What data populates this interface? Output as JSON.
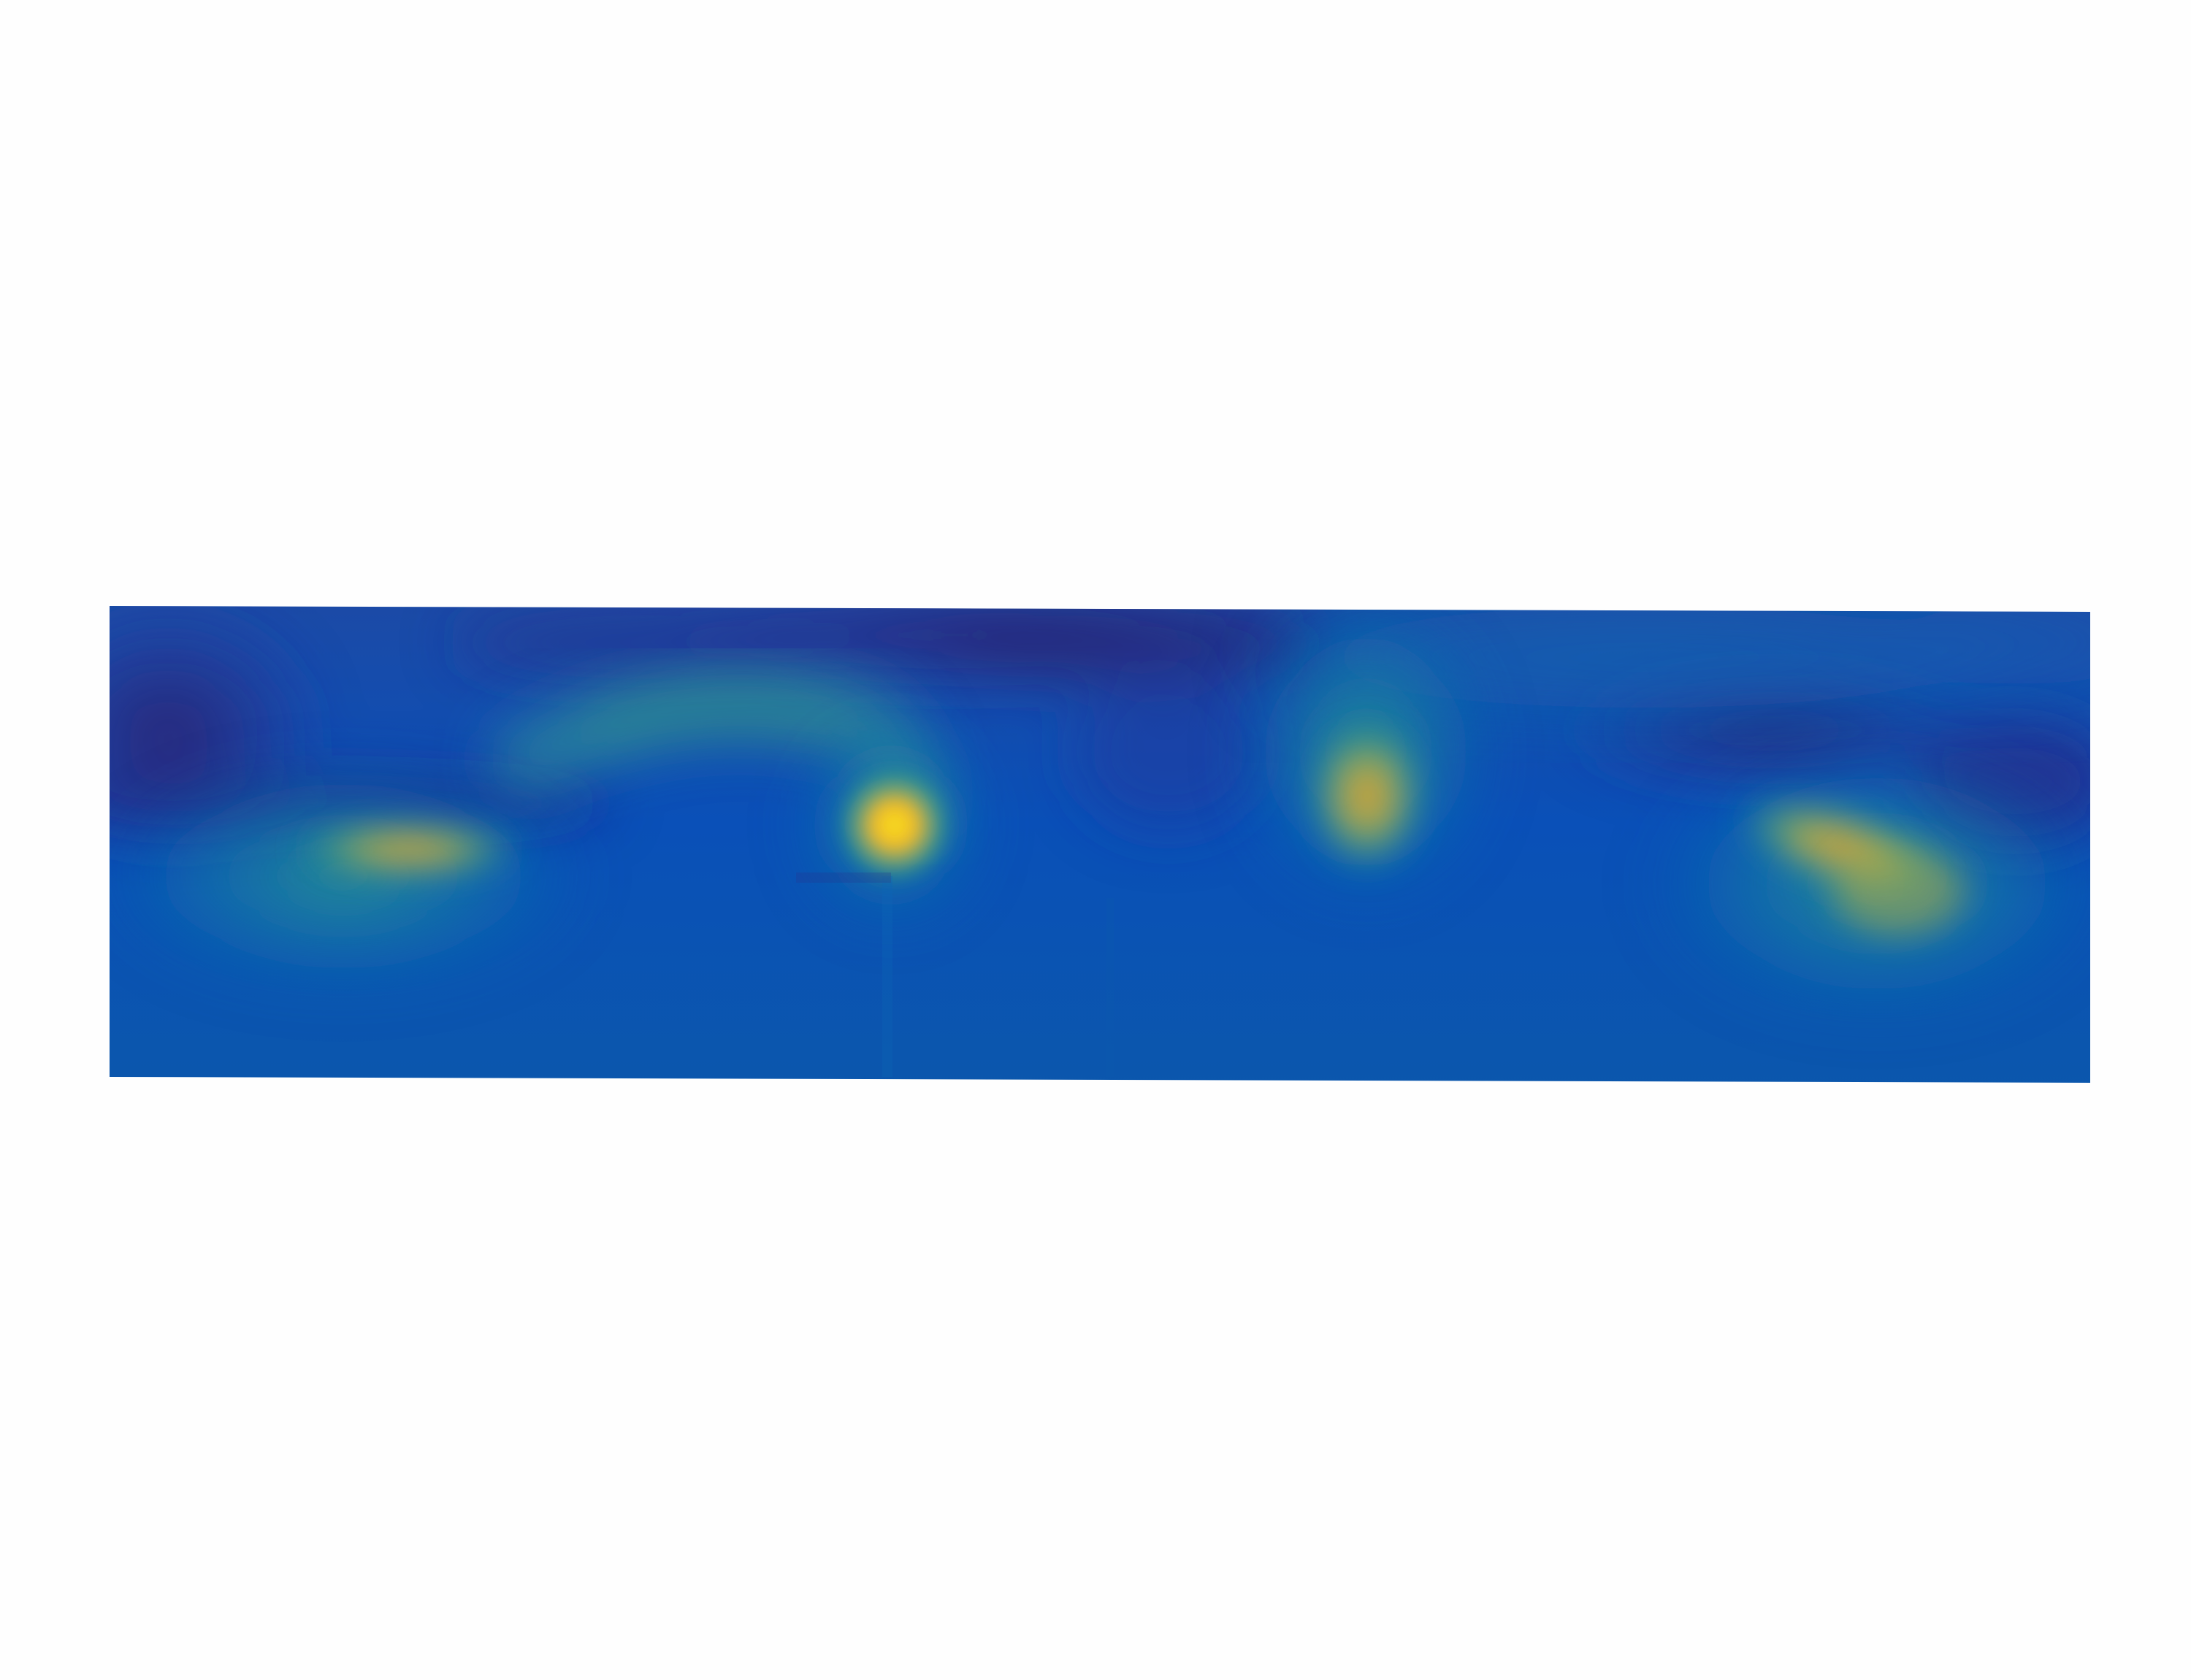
{
  "image": {
    "background": "#fefefe",
    "colormap": {
      "name": "parula-like",
      "stops": [
        "#2b1f6e",
        "#2a3a9a",
        "#0a50b8",
        "#0e63b4",
        "#1a8a9a",
        "#3aa37f",
        "#8fb05a",
        "#cfa43b",
        "#f2c21c",
        "#f7e21a"
      ]
    },
    "field": {
      "base_color": "#0a54b2",
      "bottom_color": "#0b56ad"
    },
    "hotspots": [
      {
        "name": "hotspot-left",
        "peak_color": "#d19a3c",
        "intensity": 0.78
      },
      {
        "name": "hotspot-center-left",
        "peak_color": "#f6d11b",
        "intensity": 1.0
      },
      {
        "name": "hotspot-center-right",
        "peak_color": "#c6a33e",
        "intensity": 0.75
      },
      {
        "name": "hotspot-right",
        "peak_color": "#c7a23f",
        "intensity": 0.72
      }
    ]
  }
}
